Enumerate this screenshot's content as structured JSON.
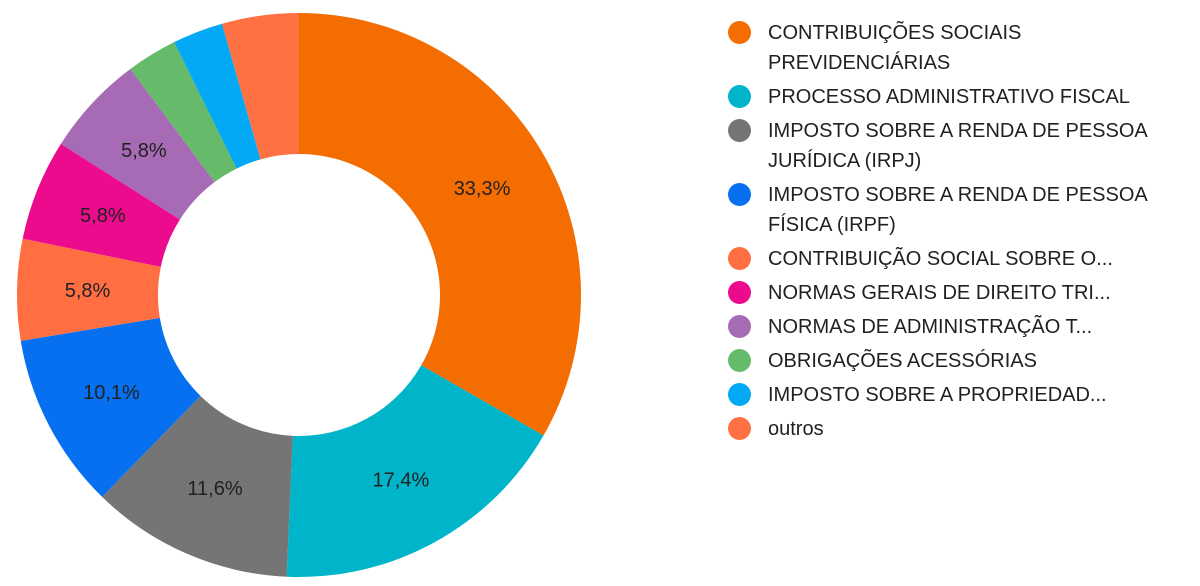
{
  "chart_data": {
    "type": "pie",
    "donut": true,
    "legend_position": "right",
    "slices": [
      {
        "label": "CONTRIBUIÇÕES SOCIAIS PREVIDENCIÁRIAS",
        "legend_text": "CONTRIBUIÇÕES SOCIAIS PREVIDENCIÁRIAS",
        "value": 33.3,
        "display": "33,3%",
        "color": "#F46D00",
        "truncated": false
      },
      {
        "label": "PROCESSO ADMINISTRATIVO FISCAL",
        "legend_text": "PROCESSO ADMINISTRATIVO FISCAL",
        "value": 17.4,
        "display": "17,4%",
        "color": "#00B5C9",
        "truncated": false
      },
      {
        "label": "IMPOSTO SOBRE A RENDA DE PESSOA JURÍDICA (IRPJ)",
        "legend_text": "IMPOSTO SOBRE A RENDA DE PESSOA JURÍDICA (IRPJ)",
        "value": 11.6,
        "display": "11,6%",
        "color": "#757575",
        "truncated": false
      },
      {
        "label": "IMPOSTO SOBRE A RENDA DE PESSOA FÍSICA (IRPF)",
        "legend_text": "IMPOSTO SOBRE A RENDA DE PESSOA FÍSICA (IRPF)",
        "value": 10.1,
        "display": "10,1%",
        "color": "#0770F0",
        "truncated": false
      },
      {
        "label": "CONTRIBUIÇÃO SOCIAL SOBRE O...",
        "legend_text": "CONTRIBUIÇÃO SOCIAL SOBRE O...",
        "value": 5.8,
        "display": "5,8%",
        "color": "#FF6F42",
        "truncated": true
      },
      {
        "label": "NORMAS GERAIS DE DIREITO TRI...",
        "legend_text": "NORMAS GERAIS DE DIREITO TRI...",
        "value": 5.8,
        "display": "5,8%",
        "color": "#EB0B8C",
        "truncated": true
      },
      {
        "label": "NORMAS DE ADMINISTRAÇÃO T...",
        "legend_text": "NORMAS DE ADMINISTRAÇÃO T...",
        "value": 5.8,
        "display": "5,8%",
        "color": "#A66BB4",
        "truncated": true
      },
      {
        "label": "OBRIGAÇÕES ACESSÓRIAS",
        "legend_text": "OBRIGAÇÕES ACESSÓRIAS",
        "value": 2.9,
        "display": "",
        "color": "#66BB6A",
        "truncated": false
      },
      {
        "label": "IMPOSTO SOBRE A PROPRIEDAD...",
        "legend_text": "IMPOSTO SOBRE A PROPRIEDAD...",
        "value": 2.9,
        "display": "",
        "color": "#03A9F4",
        "truncated": true
      },
      {
        "label": "outros",
        "legend_text": "outros",
        "value": 4.4,
        "display": "",
        "color": "#FF7043",
        "truncated": false
      }
    ]
  }
}
